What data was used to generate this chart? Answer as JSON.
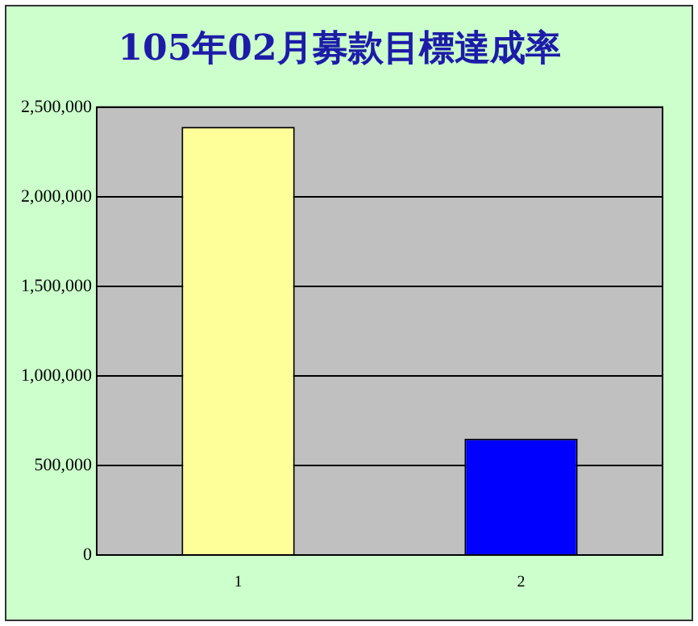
{
  "chart_data": {
    "type": "bar",
    "title": "105年02月募款目標達成率",
    "categories": [
      "1",
      "2"
    ],
    "values": [
      2390000,
      650000
    ],
    "colors": [
      "#ffff99",
      "#0000ff"
    ],
    "ylim": [
      0,
      2500000
    ],
    "yticks": [
      {
        "value": 0,
        "label": "0"
      },
      {
        "value": 500000,
        "label": "500,000"
      },
      {
        "value": 1000000,
        "label": "1,000,000"
      },
      {
        "value": 1500000,
        "label": "1,500,000"
      },
      {
        "value": 2000000,
        "label": "2,000,000"
      },
      {
        "value": 2500000,
        "label": "2,500,000"
      }
    ],
    "grid": "y",
    "legend": false
  }
}
